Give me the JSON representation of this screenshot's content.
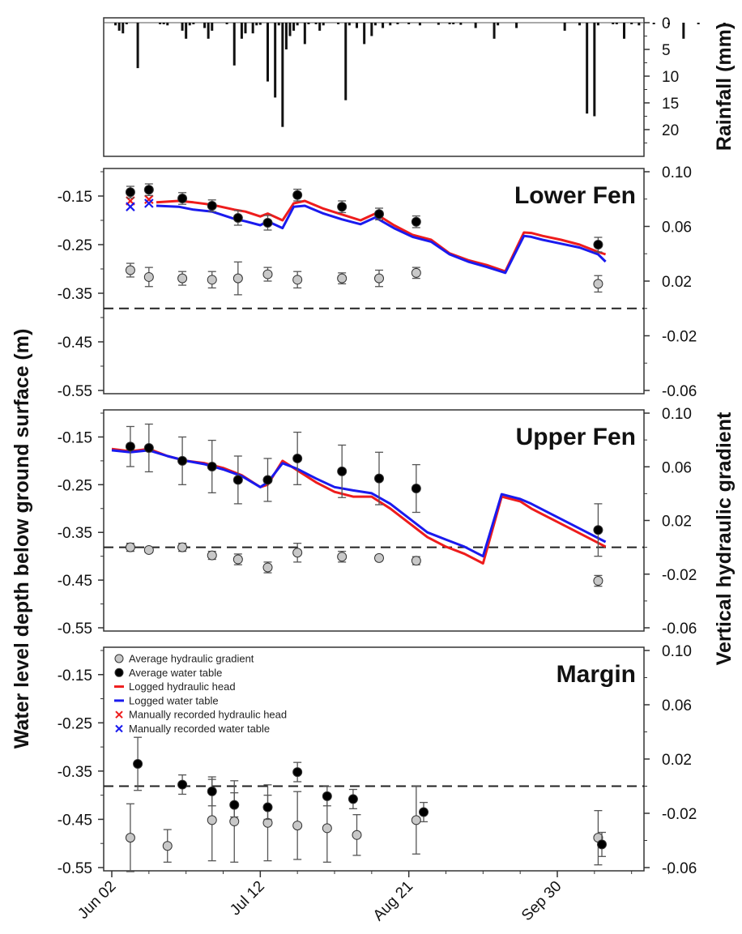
{
  "figure": {
    "y_axis_title": "Water level depth below ground surface (m)",
    "y2_axis_title": "Vertical hydraulic gradient"
  },
  "chart_data": [
    {
      "type": "bar",
      "panel": "rainfall",
      "ylabel": "Rainfall (mm)",
      "ylim": [
        0,
        25
      ],
      "y_inverted": true,
      "yticks": [
        0,
        5,
        10,
        15,
        20
      ],
      "x_unit": "day since Jun 02",
      "x": [
        1,
        2,
        3,
        4,
        7,
        13,
        14,
        15,
        19,
        20,
        21,
        22,
        25,
        26,
        27,
        31,
        33,
        35,
        36,
        38,
        39,
        40,
        42,
        44,
        45,
        46,
        47,
        48,
        49,
        50,
        52,
        53,
        55,
        56,
        57,
        61,
        63,
        64,
        66,
        68,
        70,
        71,
        73,
        75,
        77,
        80,
        83,
        88,
        91,
        92,
        94,
        98,
        103,
        104,
        109,
        122,
        126,
        128,
        130,
        131,
        135,
        136,
        138,
        140,
        142,
        146,
        150,
        154,
        158,
        165
      ],
      "values": [
        0.5,
        1.5,
        2.0,
        0.3,
        8.5,
        0.3,
        0.3,
        0.5,
        1.5,
        3.0,
        0.5,
        0.3,
        1.0,
        3.0,
        1.5,
        0.3,
        8.0,
        3.0,
        2.0,
        2.0,
        0.5,
        0.4,
        11.0,
        14.0,
        0.5,
        19.5,
        5.0,
        2.5,
        1.5,
        0.5,
        4.0,
        0.3,
        0.3,
        1.5,
        0.5,
        0.3,
        14.5,
        0.5,
        1.0,
        4.0,
        2.5,
        0.5,
        1.0,
        0.5,
        0.3,
        0.3,
        0.5,
        0.4,
        0.3,
        0.3,
        0.4,
        1.0,
        3.0,
        0.5,
        1.0,
        1.5,
        0.5,
        17.0,
        17.5,
        0.5,
        0.3,
        0.3,
        3.0,
        0.3,
        0.5,
        0.3,
        0.3,
        3.0,
        0.3,
        0.3
      ]
    },
    {
      "type": "line",
      "panel": "lower_fen",
      "title": "Lower Fen",
      "ylim": [
        -0.55,
        -0.1
      ],
      "yticks": [
        -0.15,
        -0.25,
        -0.35,
        -0.45,
        -0.55
      ],
      "y2lim": [
        -0.06,
        0.1
      ],
      "y2ticks": [
        0.1,
        0.06,
        0.02,
        -0.02,
        -0.06
      ],
      "zero_gradient_line_y2": 0,
      "avg_water_table": {
        "x": [
          5,
          10,
          19,
          27,
          34,
          42,
          50,
          62,
          72,
          82,
          131
        ],
        "y": [
          -0.142,
          -0.137,
          -0.155,
          -0.17,
          -0.195,
          -0.205,
          -0.148,
          -0.172,
          -0.187,
          -0.203,
          -0.25
        ],
        "err": [
          0.012,
          0.012,
          0.012,
          0.012,
          0.015,
          0.015,
          0.012,
          0.012,
          0.012,
          0.012,
          0.015
        ]
      },
      "avg_gradient": {
        "x": [
          5,
          10,
          19,
          27,
          34,
          42,
          50,
          62,
          72,
          82,
          131
        ],
        "y": [
          0.028,
          0.023,
          0.022,
          0.021,
          0.022,
          0.025,
          0.021,
          0.022,
          0.022,
          0.026,
          0.018
        ],
        "err": [
          0.005,
          0.007,
          0.005,
          0.006,
          0.012,
          0.005,
          0.006,
          0.004,
          0.006,
          0.004,
          0.006
        ]
      },
      "manual_head": {
        "x": [
          5,
          10
        ],
        "y": [
          -0.16,
          -0.157
        ]
      },
      "manual_table": {
        "x": [
          5,
          10
        ],
        "y": [
          -0.172,
          -0.165
        ]
      },
      "logged_head": {
        "x": [
          12,
          18,
          22,
          27,
          33,
          36,
          40,
          42,
          46,
          49,
          52,
          57,
          62,
          67,
          71,
          76,
          81,
          86,
          91,
          96,
          101,
          106,
          111,
          113,
          116,
          121,
          126,
          131,
          133
        ],
        "y": [
          -0.163,
          -0.16,
          -0.163,
          -0.168,
          -0.178,
          -0.182,
          -0.192,
          -0.186,
          -0.2,
          -0.165,
          -0.16,
          -0.176,
          -0.188,
          -0.2,
          -0.186,
          -0.21,
          -0.23,
          -0.24,
          -0.268,
          -0.282,
          -0.292,
          -0.305,
          -0.225,
          -0.226,
          -0.232,
          -0.24,
          -0.25,
          -0.265,
          -0.27
        ]
      },
      "logged_table": {
        "x": [
          12,
          18,
          22,
          27,
          33,
          36,
          40,
          42,
          46,
          49,
          52,
          57,
          62,
          67,
          71,
          76,
          81,
          86,
          91,
          96,
          101,
          106,
          111,
          113,
          116,
          121,
          126,
          131,
          133
        ],
        "y": [
          -0.17,
          -0.172,
          -0.178,
          -0.182,
          -0.197,
          -0.202,
          -0.21,
          -0.202,
          -0.216,
          -0.172,
          -0.17,
          -0.186,
          -0.198,
          -0.208,
          -0.194,
          -0.216,
          -0.234,
          -0.244,
          -0.27,
          -0.285,
          -0.296,
          -0.308,
          -0.232,
          -0.234,
          -0.24,
          -0.248,
          -0.256,
          -0.27,
          -0.285
        ]
      }
    },
    {
      "type": "line",
      "panel": "upper_fen",
      "title": "Upper Fen",
      "ylim": [
        -0.55,
        -0.1
      ],
      "yticks": [
        -0.15,
        -0.25,
        -0.35,
        -0.45,
        -0.55
      ],
      "y2lim": [
        -0.06,
        0.1
      ],
      "y2ticks": [
        0.1,
        0.06,
        0.02,
        -0.02,
        -0.06
      ],
      "zero_gradient_line_y2": 0,
      "avg_water_table": {
        "x": [
          5,
          10,
          19,
          27,
          34,
          42,
          50,
          62,
          72,
          82,
          131
        ],
        "y": [
          -0.17,
          -0.173,
          -0.2,
          -0.212,
          -0.24,
          -0.24,
          -0.195,
          -0.222,
          -0.237,
          -0.258,
          -0.345
        ],
        "err": [
          0.042,
          0.05,
          0.05,
          0.055,
          0.05,
          0.045,
          0.055,
          0.055,
          0.055,
          0.05,
          0.055
        ]
      },
      "avg_gradient": {
        "x": [
          5,
          10,
          19,
          27,
          34,
          42,
          50,
          62,
          72,
          82,
          131
        ],
        "y": [
          0.0,
          -0.002,
          0.0,
          -0.006,
          -0.009,
          -0.015,
          -0.004,
          -0.007,
          -0.008,
          -0.01,
          -0.025
        ],
        "err": [
          0.003,
          0.002,
          0.003,
          0.003,
          0.004,
          0.004,
          0.007,
          0.004,
          0.002,
          0.003,
          0.004
        ]
      },
      "logged_head": {
        "x": [
          0,
          5,
          10,
          15,
          20,
          25,
          30,
          35,
          40,
          42,
          46,
          50,
          55,
          60,
          65,
          70,
          75,
          80,
          85,
          90,
          95,
          100,
          105,
          110,
          113,
          118,
          123,
          128,
          133
        ],
        "y": [
          -0.175,
          -0.18,
          -0.175,
          -0.19,
          -0.2,
          -0.205,
          -0.215,
          -0.23,
          -0.255,
          -0.25,
          -0.2,
          -0.22,
          -0.245,
          -0.265,
          -0.275,
          -0.275,
          -0.3,
          -0.33,
          -0.36,
          -0.38,
          -0.395,
          -0.415,
          -0.275,
          -0.285,
          -0.3,
          -0.32,
          -0.34,
          -0.36,
          -0.38
        ]
      },
      "logged_table": {
        "x": [
          0,
          5,
          10,
          15,
          20,
          25,
          30,
          35,
          40,
          42,
          46,
          50,
          55,
          60,
          65,
          70,
          75,
          80,
          85,
          90,
          95,
          100,
          105,
          110,
          113,
          118,
          123,
          128,
          133
        ],
        "y": [
          -0.178,
          -0.182,
          -0.178,
          -0.19,
          -0.2,
          -0.207,
          -0.218,
          -0.232,
          -0.255,
          -0.245,
          -0.205,
          -0.217,
          -0.237,
          -0.255,
          -0.262,
          -0.268,
          -0.29,
          -0.32,
          -0.35,
          -0.365,
          -0.38,
          -0.4,
          -0.27,
          -0.28,
          -0.29,
          -0.31,
          -0.33,
          -0.35,
          -0.37
        ]
      }
    },
    {
      "type": "scatter",
      "panel": "margin",
      "title": "Margin",
      "ylim": [
        -0.55,
        -0.1
      ],
      "yticks": [
        -0.15,
        -0.25,
        -0.35,
        -0.45,
        -0.55
      ],
      "y2lim": [
        -0.06,
        0.1
      ],
      "y2ticks": [
        0.1,
        0.06,
        0.02,
        -0.02,
        -0.06
      ],
      "zero_gradient_line_y2": 0,
      "x_labels": [
        "Jun 02",
        "Jul 12",
        "Aug 21",
        "Sep 30"
      ],
      "x_label_positions": [
        0,
        40,
        80,
        120
      ],
      "xlim": [
        0,
        150
      ],
      "avg_water_table": {
        "x": [
          7,
          19,
          27,
          33,
          42,
          50,
          58,
          65,
          84,
          132
        ],
        "y": [
          -0.335,
          -0.378,
          -0.392,
          -0.42,
          -0.425,
          -0.352,
          -0.402,
          -0.408,
          -0.435,
          -0.502
        ],
        "err": [
          0.055,
          0.02,
          0.03,
          0.025,
          0.025,
          0.02,
          0.02,
          0.02,
          0.02,
          0.025
        ]
      },
      "avg_gradient": {
        "x": [
          5,
          15,
          27,
          33,
          42,
          50,
          58,
          66,
          82,
          131
        ],
        "y": [
          -0.038,
          -0.044,
          -0.025,
          -0.026,
          -0.027,
          -0.029,
          -0.031,
          -0.036,
          -0.025,
          -0.038
        ],
        "err": [
          0.025,
          0.012,
          0.03,
          0.03,
          0.028,
          0.025,
          0.025,
          0.015,
          0.025,
          0.02
        ]
      }
    }
  ],
  "legend": {
    "items": [
      {
        "label": "Average hydraulic gradient",
        "marker": "circle",
        "color": "#c8c8c8"
      },
      {
        "label": "Average water table",
        "marker": "circle",
        "color": "#000000"
      },
      {
        "label": "Logged hydraulic head",
        "marker": "line",
        "color": "#ee1c1c"
      },
      {
        "label": "Logged water table",
        "marker": "line",
        "color": "#1a1aee"
      },
      {
        "label": "Manually recorded hydraulic head",
        "marker": "cross",
        "color": "#ee1c1c"
      },
      {
        "label": "Manually recorded water table",
        "marker": "cross",
        "color": "#1a1aee"
      }
    ]
  },
  "colors": {
    "head": "#ee1c1c",
    "table": "#1a1aee",
    "gradient": "#c8c8c8",
    "avg_table": "#000000",
    "axis": "#333333"
  }
}
